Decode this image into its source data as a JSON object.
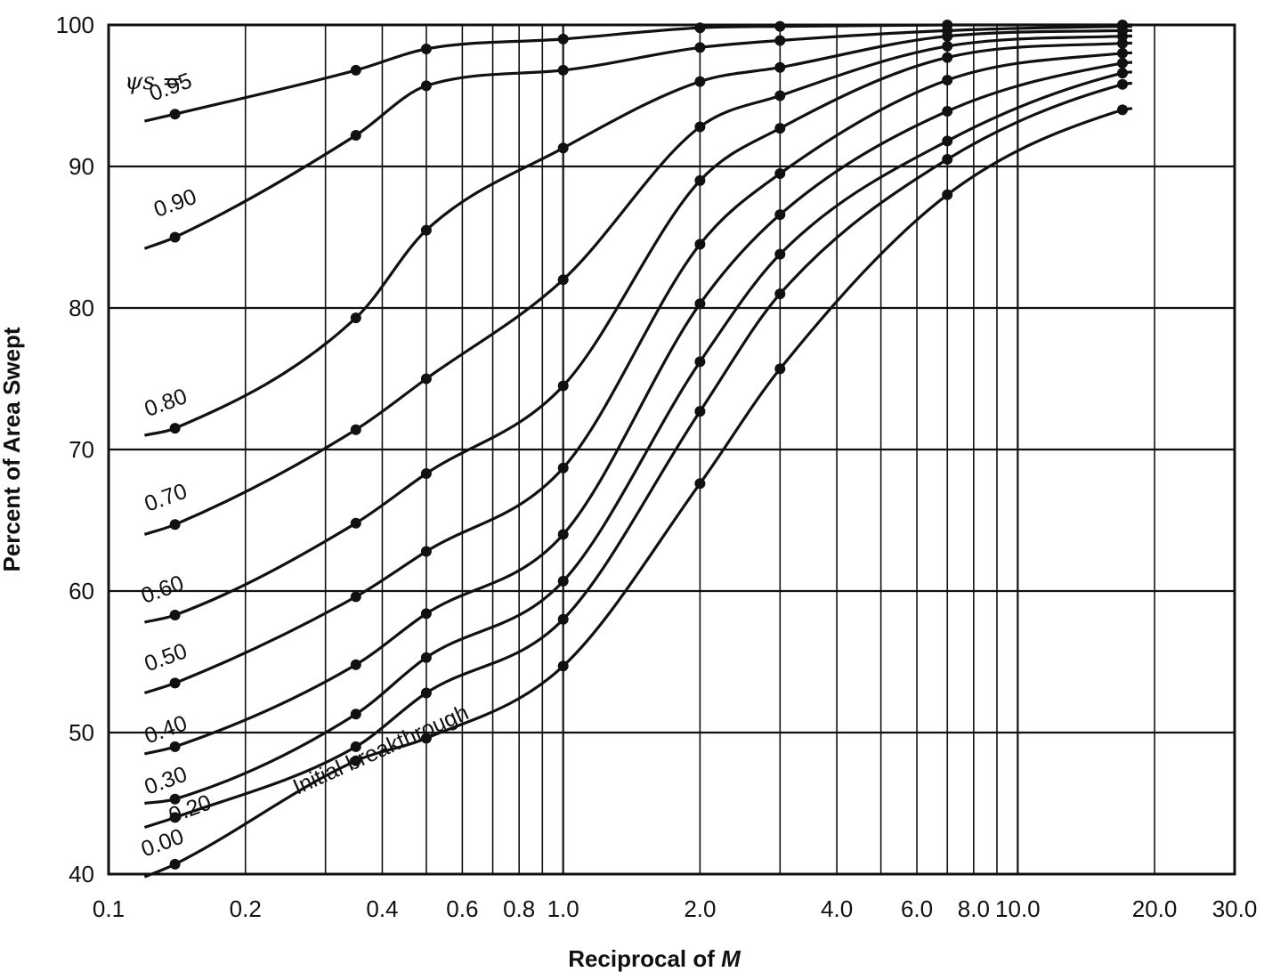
{
  "chart_data": {
    "type": "line",
    "xlabel": "Reciprocal of ",
    "xlabel_italic": "M",
    "ylabel": "Percent of Area Swept",
    "x_scale": "log",
    "xlim": [
      0.1,
      30.0
    ],
    "ylim": [
      40,
      100
    ],
    "grid": true,
    "x_ticks": [
      {
        "value": 0.1,
        "label": "0.1"
      },
      {
        "value": 0.2,
        "label": "0.2"
      },
      {
        "value": 0.4,
        "label": "0.4"
      },
      {
        "value": 0.6,
        "label": "0.6"
      },
      {
        "value": 0.8,
        "label": "0.8"
      },
      {
        "value": 1.0,
        "label": "1.0"
      },
      {
        "value": 2.0,
        "label": "2.0"
      },
      {
        "value": 4.0,
        "label": "4.0"
      },
      {
        "value": 6.0,
        "label": "6.0"
      },
      {
        "value": 8.0,
        "label": "8.0"
      },
      {
        "value": 10.0,
        "label": "10.0"
      },
      {
        "value": 20.0,
        "label": "20.0"
      },
      {
        "value": 30.0,
        "label": "30.0"
      }
    ],
    "y_ticks": [
      {
        "value": 100,
        "label": "100"
      },
      {
        "value": 90,
        "label": "90"
      },
      {
        "value": 80,
        "label": "80"
      },
      {
        "value": 70,
        "label": "70"
      },
      {
        "value": 60,
        "label": "60"
      },
      {
        "value": 50,
        "label": "50"
      },
      {
        "value": 40,
        "label": "40"
      }
    ],
    "x_gridlines": [
      0.1,
      0.2,
      0.3,
      0.4,
      0.5,
      0.6,
      0.7,
      0.8,
      0.9,
      1.0,
      2.0,
      3.0,
      4.0,
      5.0,
      6.0,
      7.0,
      8.0,
      9.0,
      10.0,
      20.0,
      30.0
    ],
    "y_gridlines": [
      40,
      50,
      60,
      70,
      80,
      90,
      100
    ],
    "legend_title": "ψs =",
    "series": [
      {
        "name": "0.95",
        "label_at": [
          0.125,
          94.6
        ],
        "x": [
          0.12,
          0.14,
          0.35,
          0.5,
          1.0,
          2.0,
          3.0,
          7.0,
          17.0
        ],
        "y": [
          93.2,
          93.7,
          96.8,
          98.3,
          99.0,
          99.8,
          99.9,
          100.0,
          100.0
        ]
      },
      {
        "name": "0.90",
        "label_at": [
          0.128,
          86.4
        ],
        "x": [
          0.12,
          0.14,
          0.35,
          0.5,
          1.0,
          2.0,
          3.0,
          7.0,
          17.0
        ],
        "y": [
          84.2,
          85.0,
          92.2,
          95.7,
          96.8,
          98.4,
          98.9,
          99.6,
          99.9
        ]
      },
      {
        "name": "0.80",
        "label_at": [
          0.122,
          72.3
        ],
        "x": [
          0.12,
          0.14,
          0.35,
          0.5,
          1.0,
          2.0,
          3.0,
          7.0,
          17.0
        ],
        "y": [
          71.0,
          71.5,
          79.3,
          85.5,
          91.3,
          96.0,
          97.0,
          99.2,
          99.6
        ]
      },
      {
        "name": "0.70",
        "label_at": [
          0.122,
          65.6
        ],
        "x": [
          0.12,
          0.14,
          0.35,
          0.5,
          1.0,
          2.0,
          3.0,
          7.0,
          17.0
        ],
        "y": [
          64.0,
          64.7,
          71.4,
          75.0,
          82.0,
          92.8,
          95.0,
          98.5,
          99.2
        ]
      },
      {
        "name": "0.60",
        "label_at": [
          0.12,
          59.1
        ],
        "x": [
          0.12,
          0.14,
          0.35,
          0.5,
          1.0,
          2.0,
          3.0,
          7.0,
          17.0
        ],
        "y": [
          57.8,
          58.3,
          64.8,
          68.3,
          74.5,
          89.0,
          92.7,
          97.7,
          98.7
        ]
      },
      {
        "name": "0.50",
        "label_at": [
          0.122,
          54.3
        ],
        "x": [
          0.12,
          0.14,
          0.35,
          0.5,
          1.0,
          2.0,
          3.0,
          7.0,
          17.0
        ],
        "y": [
          52.8,
          53.5,
          59.6,
          62.8,
          68.7,
          84.5,
          89.5,
          96.1,
          98.0
        ]
      },
      {
        "name": "0.40",
        "label_at": [
          0.122,
          49.2
        ],
        "x": [
          0.12,
          0.14,
          0.35,
          0.5,
          1.0,
          2.0,
          3.0,
          7.0,
          17.0
        ],
        "y": [
          48.5,
          49.0,
          54.8,
          58.4,
          64.0,
          80.3,
          86.6,
          93.9,
          97.3
        ]
      },
      {
        "name": "0.30",
        "label_at": [
          0.122,
          45.6
        ],
        "x": [
          0.12,
          0.14,
          0.35,
          0.5,
          1.0,
          2.0,
          3.0,
          7.0,
          17.0
        ],
        "y": [
          45.0,
          45.3,
          51.3,
          55.3,
          60.7,
          76.2,
          83.8,
          91.8,
          96.6
        ]
      },
      {
        "name": "0.20",
        "label_at": [
          0.138,
          43.6
        ],
        "x": [
          0.12,
          0.14,
          0.35,
          0.5,
          1.0,
          2.0,
          3.0,
          7.0,
          17.0
        ],
        "y": [
          43.3,
          44.0,
          49.0,
          52.8,
          58.0,
          72.7,
          81.0,
          90.5,
          95.8
        ]
      },
      {
        "name": "0.00",
        "label_at": [
          0.12,
          41.2
        ],
        "x": [
          0.12,
          0.14,
          0.35,
          0.5,
          1.0,
          2.0,
          3.0,
          7.0,
          17.0
        ],
        "y": [
          39.8,
          40.7,
          48.0,
          49.6,
          54.7,
          67.6,
          75.7,
          88.0,
          94.0
        ]
      },
      {
        "name": "Initial breakthrough",
        "label_at": [
          0.26,
          45.6
        ],
        "x": [
          0.13,
          0.2,
          0.35,
          0.5
        ],
        "y": [
          41.5,
          44.5,
          48.3,
          51.2
        ]
      }
    ]
  }
}
